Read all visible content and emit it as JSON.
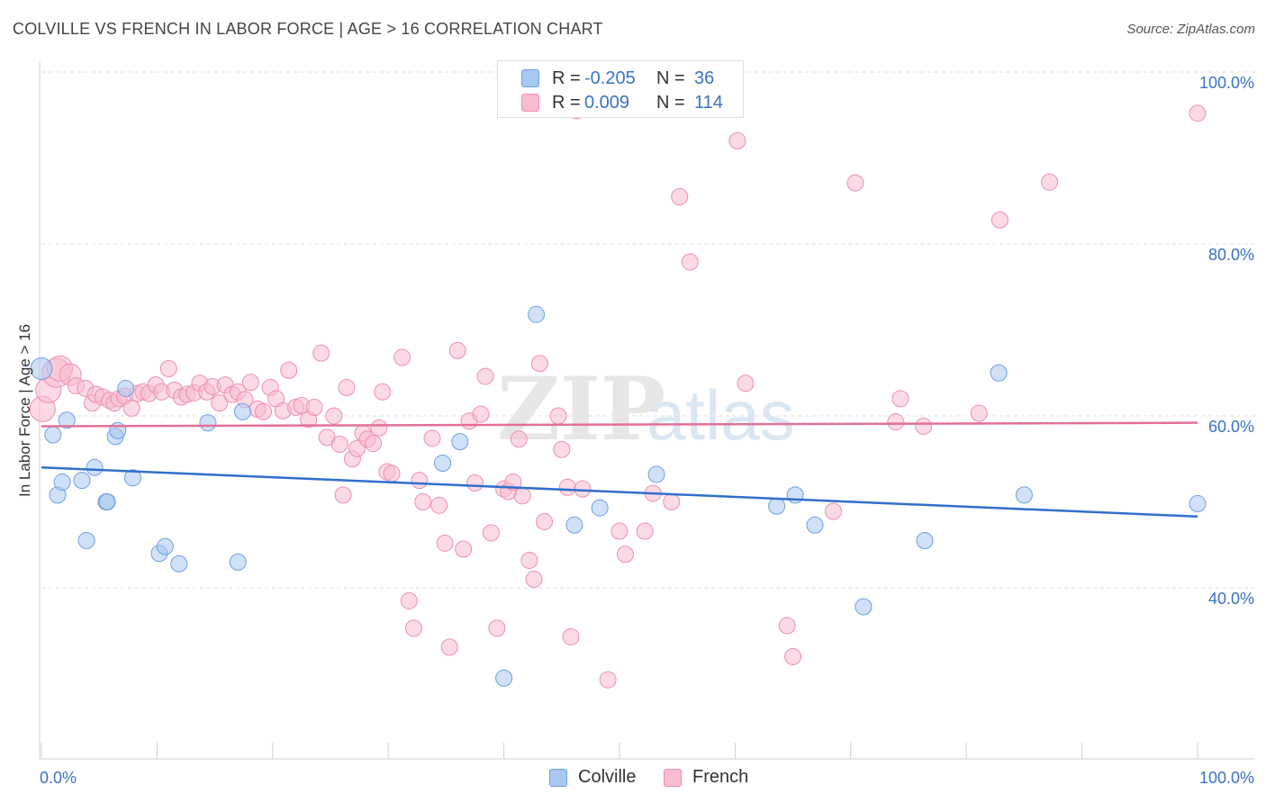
{
  "header": {
    "title": "COLVILLE VS FRENCH IN LABOR FORCE | AGE > 16 CORRELATION CHART",
    "source": "Source: ZipAtlas.com"
  },
  "legend": {
    "rows": [
      {
        "r_label": "R =",
        "r_value": "-0.205",
        "n_label": "N =",
        "n_value": "36",
        "color": "#a9c8f0",
        "border": "#6d9fe0"
      },
      {
        "r_label": "R =",
        "r_value": "0.009",
        "n_label": "N =",
        "n_value": "114",
        "color": "#f8bcd0",
        "border": "#ec8fae"
      }
    ]
  },
  "bottom_legend": [
    {
      "label": "Colville",
      "color": "#a9c8f0",
      "border": "#6d9fe0"
    },
    {
      "label": "French",
      "color": "#f8bcd0",
      "border": "#ec8fae"
    }
  ],
  "chart_data": {
    "type": "scatter",
    "title": "COLVILLE VS FRENCH IN LABOR FORCE | AGE > 16 CORRELATION CHART",
    "xlabel": "",
    "ylabel": "In Labor Force | Age > 16",
    "xlim": [
      0,
      100
    ],
    "ylim": [
      20,
      102
    ],
    "x_tick_labels": [
      "0.0%",
      "100.0%"
    ],
    "y_tick_labels": [
      "40.0%",
      "60.0%",
      "80.0%",
      "100.0%"
    ],
    "y_ticks": [
      40,
      60,
      80,
      100
    ],
    "grid": true,
    "legend_position": "top-center",
    "watermark": "ZIPatlas",
    "series": [
      {
        "name": "Colville",
        "color": "#6d9fe0",
        "fill": "#a9c8f0",
        "trend": {
          "x": [
            0,
            100
          ],
          "y": [
            54.0,
            48.3
          ],
          "color": "#2f6fcb"
        },
        "points": [
          [
            0.0,
            65.5,
            12
          ],
          [
            1.0,
            57.8,
            9
          ],
          [
            1.4,
            50.8,
            9
          ],
          [
            1.8,
            52.3,
            9
          ],
          [
            2.2,
            59.5,
            9
          ],
          [
            3.5,
            52.5,
            9
          ],
          [
            3.9,
            45.5,
            9
          ],
          [
            4.6,
            54.0,
            9
          ],
          [
            5.6,
            50.0,
            9
          ],
          [
            5.7,
            50.0,
            9
          ],
          [
            6.4,
            57.6,
            9
          ],
          [
            6.6,
            58.3,
            9
          ],
          [
            7.3,
            63.2,
            9
          ],
          [
            7.9,
            52.8,
            9
          ],
          [
            10.2,
            44.0,
            9
          ],
          [
            10.7,
            44.8,
            9
          ],
          [
            11.9,
            42.8,
            9
          ],
          [
            14.4,
            59.2,
            9
          ],
          [
            17.0,
            43.0,
            9
          ],
          [
            17.4,
            60.5,
            9
          ],
          [
            34.7,
            54.5,
            9
          ],
          [
            36.2,
            57.0,
            9
          ],
          [
            40.0,
            29.5,
            9
          ],
          [
            42.8,
            71.8,
            9
          ],
          [
            46.1,
            47.3,
            9
          ],
          [
            48.3,
            49.3,
            9
          ],
          [
            53.2,
            53.2,
            9
          ],
          [
            63.6,
            49.5,
            9
          ],
          [
            65.2,
            50.8,
            9
          ],
          [
            66.9,
            47.3,
            9
          ],
          [
            71.1,
            37.8,
            9
          ],
          [
            76.4,
            45.5,
            9
          ],
          [
            82.8,
            65.0,
            9
          ],
          [
            85.0,
            50.8,
            9
          ],
          [
            100.0,
            49.8,
            9
          ]
        ]
      },
      {
        "name": "French",
        "color": "#ec8fae",
        "fill": "#f8bcd0",
        "trend": {
          "x": [
            0,
            100
          ],
          "y": [
            58.8,
            59.2
          ],
          "color": "#e27099"
        },
        "points": [
          [
            0.1,
            60.8,
            14
          ],
          [
            0.6,
            63.0,
            14
          ],
          [
            1.3,
            65.0,
            16
          ],
          [
            1.6,
            65.5,
            14
          ],
          [
            2.5,
            64.8,
            12
          ],
          [
            3.0,
            63.5,
            9
          ],
          [
            3.8,
            63.2,
            9
          ],
          [
            4.4,
            61.5,
            9
          ],
          [
            4.7,
            62.5,
            9
          ],
          [
            5.3,
            62.2,
            9
          ],
          [
            5.9,
            61.8,
            9
          ],
          [
            6.3,
            61.5,
            9
          ],
          [
            6.7,
            62.0,
            9
          ],
          [
            7.2,
            62.3,
            9
          ],
          [
            7.8,
            60.9,
            9
          ],
          [
            8.3,
            62.6,
            9
          ],
          [
            8.8,
            62.8,
            9
          ],
          [
            9.3,
            62.6,
            9
          ],
          [
            9.9,
            63.6,
            9
          ],
          [
            10.4,
            62.8,
            9
          ],
          [
            11.0,
            65.5,
            9
          ],
          [
            11.5,
            63.0,
            9
          ],
          [
            12.1,
            62.2,
            9
          ],
          [
            12.6,
            62.5,
            9
          ],
          [
            13.2,
            62.7,
            9
          ],
          [
            13.7,
            63.8,
            9
          ],
          [
            14.3,
            62.8,
            9
          ],
          [
            14.8,
            63.4,
            9
          ],
          [
            15.4,
            61.5,
            9
          ],
          [
            15.9,
            63.6,
            9
          ],
          [
            16.5,
            62.5,
            9
          ],
          [
            17.0,
            62.8,
            9
          ],
          [
            17.6,
            61.9,
            9
          ],
          [
            18.1,
            63.9,
            9
          ],
          [
            18.7,
            60.8,
            9
          ],
          [
            19.2,
            60.5,
            9
          ],
          [
            19.8,
            63.3,
            9
          ],
          [
            20.3,
            62.0,
            9
          ],
          [
            20.9,
            60.6,
            9
          ],
          [
            21.4,
            65.3,
            9
          ],
          [
            22.0,
            61.0,
            9
          ],
          [
            22.5,
            61.2,
            9
          ],
          [
            23.1,
            59.6,
            9
          ],
          [
            23.6,
            61.0,
            9
          ],
          [
            24.2,
            67.3,
            9
          ],
          [
            24.7,
            57.5,
            9
          ],
          [
            25.3,
            60.0,
            9
          ],
          [
            25.8,
            56.7,
            9
          ],
          [
            26.1,
            50.8,
            9
          ],
          [
            26.4,
            63.3,
            9
          ],
          [
            26.9,
            55.0,
            9
          ],
          [
            27.3,
            56.2,
            9
          ],
          [
            27.8,
            58.0,
            9
          ],
          [
            28.2,
            57.3,
            9
          ],
          [
            28.7,
            56.8,
            9
          ],
          [
            29.2,
            58.6,
            9
          ],
          [
            29.5,
            62.8,
            9
          ],
          [
            29.9,
            53.5,
            9
          ],
          [
            30.3,
            53.3,
            9
          ],
          [
            31.2,
            66.8,
            9
          ],
          [
            31.8,
            38.5,
            9
          ],
          [
            32.2,
            35.3,
            9
          ],
          [
            32.7,
            52.5,
            9
          ],
          [
            33.0,
            50.0,
            9
          ],
          [
            33.8,
            57.4,
            9
          ],
          [
            34.4,
            49.6,
            9
          ],
          [
            34.9,
            45.2,
            9
          ],
          [
            35.3,
            33.1,
            9
          ],
          [
            36.0,
            67.6,
            9
          ],
          [
            36.5,
            44.5,
            9
          ],
          [
            37.0,
            59.4,
            9
          ],
          [
            37.5,
            52.2,
            9
          ],
          [
            38.0,
            60.2,
            9
          ],
          [
            38.4,
            64.6,
            9
          ],
          [
            38.9,
            46.4,
            9
          ],
          [
            39.4,
            35.3,
            9
          ],
          [
            40.0,
            51.5,
            9
          ],
          [
            40.4,
            51.2,
            9
          ],
          [
            40.8,
            52.3,
            9
          ],
          [
            41.3,
            57.3,
            9
          ],
          [
            41.6,
            50.7,
            9
          ],
          [
            42.2,
            43.2,
            9
          ],
          [
            42.6,
            41.0,
            9
          ],
          [
            43.1,
            66.1,
            9
          ],
          [
            43.5,
            47.7,
            9
          ],
          [
            44.7,
            60.0,
            9
          ],
          [
            45.0,
            56.1,
            9
          ],
          [
            45.5,
            51.7,
            9
          ],
          [
            45.8,
            34.3,
            9
          ],
          [
            46.3,
            95.5,
            9
          ],
          [
            46.8,
            51.5,
            9
          ],
          [
            49.0,
            29.3,
            9
          ],
          [
            50.0,
            46.6,
            9
          ],
          [
            50.5,
            43.9,
            9
          ],
          [
            52.2,
            46.6,
            9
          ],
          [
            52.9,
            51.0,
            9
          ],
          [
            54.5,
            50.0,
            9
          ],
          [
            55.2,
            85.5,
            9
          ],
          [
            56.1,
            77.9,
            9
          ],
          [
            60.2,
            92.0,
            9
          ],
          [
            60.9,
            63.8,
            9
          ],
          [
            64.5,
            35.6,
            9
          ],
          [
            65.0,
            32.0,
            9
          ],
          [
            68.5,
            48.9,
            9
          ],
          [
            70.4,
            87.1,
            9
          ],
          [
            73.9,
            59.3,
            9
          ],
          [
            74.3,
            62.0,
            9
          ],
          [
            76.3,
            58.8,
            9
          ],
          [
            81.1,
            60.3,
            9
          ],
          [
            82.9,
            82.8,
            9
          ],
          [
            87.2,
            87.2,
            9
          ],
          [
            100.0,
            95.2,
            9
          ]
        ]
      }
    ]
  }
}
